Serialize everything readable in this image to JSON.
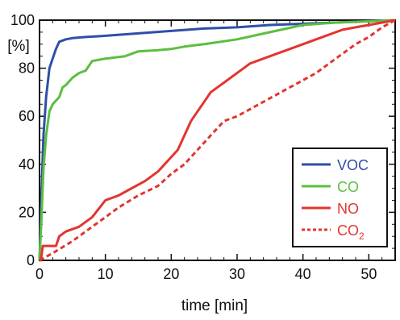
{
  "chart_data": {
    "type": "line",
    "title": "",
    "xlabel": "time [min]",
    "ylabel": "[%]",
    "xlim": [
      0,
      54
    ],
    "ylim": [
      0,
      100
    ],
    "xticks": [
      "0",
      "10",
      "20",
      "30",
      "40",
      "50"
    ],
    "yticks": [
      "0",
      "20",
      "40",
      "60",
      "80",
      "100"
    ],
    "grid": false,
    "legend_position": "center-right",
    "series": [
      {
        "name": "VOC",
        "color": "#2f4fa8",
        "dash": "solid",
        "x": [
          0,
          0.3,
          0.6,
          1.0,
          1.5,
          2.0,
          2.5,
          3.0,
          4.0,
          5.0,
          7.0,
          10.0,
          15.0,
          20.0,
          25.0,
          30.0,
          35.0,
          40.0,
          45.0,
          50.0,
          54.0
        ],
        "y": [
          0,
          28,
          52,
          68,
          80,
          84,
          88,
          91,
          92,
          92.5,
          93,
          93.5,
          94.5,
          95.5,
          96.5,
          97,
          98,
          98.5,
          99,
          99.6,
          100
        ]
      },
      {
        "name": "CO",
        "color": "#5cbf3f",
        "dash": "solid",
        "x": [
          0,
          0.3,
          0.6,
          1.0,
          1.5,
          2.0,
          3.0,
          3.5,
          4.0,
          5.0,
          6.0,
          7.0,
          8.0,
          10.0,
          13.0,
          15.0,
          18.0,
          20.0,
          22.0,
          25.0,
          30.0,
          35.0,
          40.0,
          45.0,
          50.0,
          54.0
        ],
        "y": [
          0,
          18,
          38,
          52,
          62,
          65,
          68,
          72,
          73,
          76,
          78,
          79,
          83,
          84,
          85,
          87,
          87.5,
          88,
          89,
          90,
          92,
          95,
          98,
          99,
          99.5,
          100
        ]
      },
      {
        "name": "NO",
        "color": "#e4342e",
        "dash": "solid",
        "x": [
          0,
          0.2,
          0.5,
          1.5,
          2.5,
          3.0,
          4.0,
          6.0,
          8.0,
          10.0,
          12.0,
          14.0,
          16.0,
          18.0,
          20.0,
          21.0,
          22.0,
          23.0,
          24.0,
          25.0,
          26.0,
          27.0,
          28.0,
          30.0,
          32.0,
          34.0,
          36.0,
          38.0,
          40.0,
          42.0,
          44.0,
          46.0,
          48.0,
          50.0,
          52.0,
          54.0
        ],
        "y": [
          0,
          0,
          6,
          6,
          6,
          10,
          12,
          14,
          18,
          25,
          27,
          30,
          33,
          37,
          43,
          46,
          52,
          58,
          62,
          66,
          70,
          72,
          74,
          78,
          82,
          84,
          86,
          88,
          90,
          92,
          94,
          96,
          97,
          98,
          99,
          100
        ]
      },
      {
        "name": "CO2",
        "color": "#e4342e",
        "dash": "dashed",
        "x": [
          0,
          2,
          5,
          8,
          10,
          12,
          15,
          18,
          20,
          22,
          24,
          26,
          28,
          30,
          32,
          34,
          36,
          38,
          40,
          42,
          44,
          46,
          48,
          50,
          52,
          54
        ],
        "y": [
          0,
          3,
          8,
          14,
          18,
          22,
          27,
          31,
          36,
          40,
          46,
          52,
          58,
          60,
          63,
          66,
          69,
          72,
          75,
          78,
          82,
          86,
          90,
          93,
          97,
          100
        ]
      }
    ],
    "legend": {
      "entries": [
        "VOC",
        "CO",
        "NO",
        "CO"
      ],
      "co2_subscript": "2"
    }
  }
}
